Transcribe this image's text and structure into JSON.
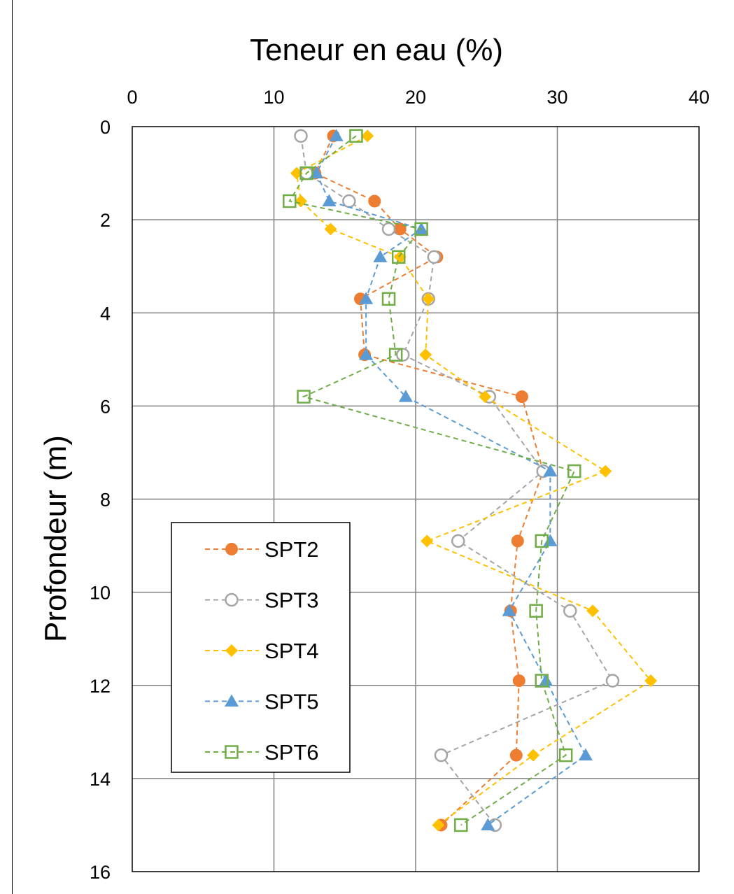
{
  "chart_data": {
    "type": "scatter",
    "title": "Teneur en eau (%)",
    "xlabel": "Teneur en eau (%)",
    "ylabel": "Profondeur (m)",
    "xlim": [
      0,
      40
    ],
    "ylim": [
      0,
      16
    ],
    "y_inverted": true,
    "x_axis_position": "top",
    "xticks": [
      0,
      10,
      20,
      30,
      40
    ],
    "yticks": [
      0,
      2,
      4,
      6,
      8,
      10,
      12,
      14,
      16
    ],
    "grid": true,
    "legend_position": "bottom-left",
    "line_style": "dashed",
    "series": [
      {
        "name": "SPT2",
        "marker": "circle-filled",
        "color": "#ED7D31",
        "points": [
          [
            14.2,
            0.2
          ],
          [
            12.9,
            1.0
          ],
          [
            17.1,
            1.6
          ],
          [
            18.9,
            2.2
          ],
          [
            21.5,
            2.8
          ],
          [
            16.1,
            3.7
          ],
          [
            16.4,
            4.9
          ],
          [
            27.5,
            5.8
          ],
          [
            29.0,
            7.4
          ],
          [
            27.2,
            8.9
          ],
          [
            26.7,
            10.4
          ],
          [
            27.3,
            11.9
          ],
          [
            27.1,
            13.5
          ],
          [
            21.8,
            15.0
          ]
        ]
      },
      {
        "name": "SPT3",
        "marker": "circle-open",
        "color": "#A5A5A5",
        "points": [
          [
            11.9,
            0.2
          ],
          [
            12.3,
            1.0
          ],
          [
            15.3,
            1.6
          ],
          [
            18.1,
            2.2
          ],
          [
            21.3,
            2.8
          ],
          [
            20.9,
            3.7
          ],
          [
            19.1,
            4.9
          ],
          [
            25.2,
            5.8
          ],
          [
            29.0,
            7.4
          ],
          [
            23.0,
            8.9
          ],
          [
            30.9,
            10.4
          ],
          [
            33.9,
            11.9
          ],
          [
            21.8,
            13.5
          ],
          [
            25.6,
            15.0
          ]
        ]
      },
      {
        "name": "SPT4",
        "marker": "diamond-filled",
        "color": "#FFC000",
        "points": [
          [
            16.6,
            0.2
          ],
          [
            11.6,
            1.0
          ],
          [
            11.9,
            1.6
          ],
          [
            14.0,
            2.2
          ],
          [
            18.9,
            2.8
          ],
          [
            20.9,
            3.7
          ],
          [
            20.7,
            4.9
          ],
          [
            24.9,
            5.8
          ],
          [
            33.4,
            7.4
          ],
          [
            20.8,
            8.9
          ],
          [
            32.5,
            10.4
          ],
          [
            36.6,
            11.9
          ],
          [
            28.3,
            13.5
          ],
          [
            21.6,
            15.0
          ]
        ]
      },
      {
        "name": "SPT5",
        "marker": "triangle-filled",
        "color": "#5B9BD5",
        "points": [
          [
            14.4,
            0.2
          ],
          [
            13.0,
            1.0
          ],
          [
            13.9,
            1.6
          ],
          [
            20.4,
            2.2
          ],
          [
            17.5,
            2.8
          ],
          [
            16.5,
            3.7
          ],
          [
            16.5,
            4.9
          ],
          [
            19.3,
            5.8
          ],
          [
            29.5,
            7.4
          ],
          [
            29.5,
            8.9
          ],
          [
            26.6,
            10.4
          ],
          [
            29.2,
            11.9
          ],
          [
            32.0,
            13.5
          ],
          [
            25.1,
            15.0
          ]
        ]
      },
      {
        "name": "SPT6",
        "marker": "square-open",
        "color": "#70AD47",
        "points": [
          [
            15.8,
            0.2
          ],
          [
            12.3,
            1.0
          ],
          [
            11.1,
            1.6
          ],
          [
            20.4,
            2.2
          ],
          [
            18.8,
            2.8
          ],
          [
            18.1,
            3.7
          ],
          [
            18.6,
            4.9
          ],
          [
            12.1,
            5.8
          ],
          [
            31.2,
            7.4
          ],
          [
            28.9,
            8.9
          ],
          [
            28.5,
            10.4
          ],
          [
            28.9,
            11.9
          ],
          [
            30.6,
            13.5
          ],
          [
            23.2,
            15.0
          ]
        ]
      }
    ]
  }
}
